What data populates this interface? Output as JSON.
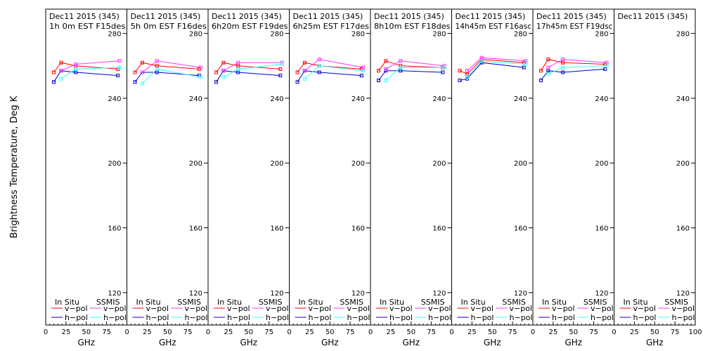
{
  "ylabel": "Brightness Temperature, Deg K",
  "xlabel": "GHz",
  "legend": {
    "insitu_title": "In Situ",
    "ssmis_title": "SSMIS",
    "v_label": "v−pol",
    "h_label": "h−pol"
  },
  "colors": {
    "insitu_v": "#ff0000",
    "insitu_h": "#0000cc",
    "ssmis_v": "#ff33ff",
    "ssmis_h": "#33ffff"
  },
  "chart_data": [
    {
      "type": "line",
      "title_line1": "Dec11  2015  (345)",
      "title_line2": "1h  0m  EST  F15des",
      "xlim": [
        0,
        100
      ],
      "ylim": [
        100,
        295
      ],
      "yticks": [
        120,
        160,
        200,
        240,
        280
      ],
      "xticks": [
        0,
        25,
        50,
        75,
        100
      ],
      "series": [
        {
          "name": "v-pol",
          "group": "In Situ",
          "x": [
            10,
            19,
            37,
            89
          ],
          "values": [
            256,
            262,
            260,
            258
          ]
        },
        {
          "name": "h-pol",
          "group": "In Situ",
          "x": [
            10,
            19,
            37,
            89
          ],
          "values": [
            250,
            257,
            256,
            254
          ]
        },
        {
          "name": "v-pol",
          "group": "SSMIS",
          "x": [
            19,
            37,
            91
          ],
          "values": [
            257,
            261,
            263
          ]
        },
        {
          "name": "h-pol",
          "group": "SSMIS",
          "x": [
            19,
            37,
            91
          ],
          "values": [
            252,
            258,
            259
          ]
        }
      ]
    },
    {
      "type": "line",
      "title_line1": "Dec11  2015  (345)",
      "title_line2": "5h  0m  EST  F16des",
      "xlim": [
        0,
        100
      ],
      "ylim": [
        100,
        295
      ],
      "yticks": [
        120,
        160,
        200,
        240,
        280
      ],
      "xticks": [
        0,
        25,
        50,
        75,
        100
      ],
      "series": [
        {
          "name": "v-pol",
          "group": "In Situ",
          "x": [
            10,
            19,
            37,
            89
          ],
          "values": [
            256,
            262,
            260,
            258
          ]
        },
        {
          "name": "h-pol",
          "group": "In Situ",
          "x": [
            10,
            19,
            37,
            89
          ],
          "values": [
            250,
            256,
            256,
            254
          ]
        },
        {
          "name": "v-pol",
          "group": "SSMIS",
          "x": [
            19,
            37,
            91
          ],
          "values": [
            256,
            263,
            259
          ]
        },
        {
          "name": "h-pol",
          "group": "SSMIS",
          "x": [
            19,
            37,
            91
          ],
          "values": [
            249,
            258,
            253
          ]
        }
      ]
    },
    {
      "type": "line",
      "title_line1": "Dec11  2015  (345)",
      "title_line2": "6h20m  EST  F19des",
      "xlim": [
        0,
        100
      ],
      "ylim": [
        100,
        295
      ],
      "yticks": [
        120,
        160,
        200,
        240,
        280
      ],
      "xticks": [
        0,
        25,
        50,
        75,
        100
      ],
      "series": [
        {
          "name": "v-pol",
          "group": "In Situ",
          "x": [
            10,
            19,
            37,
            89
          ],
          "values": [
            256,
            262,
            260,
            258
          ]
        },
        {
          "name": "h-pol",
          "group": "In Situ",
          "x": [
            10,
            19,
            37,
            89
          ],
          "values": [
            250,
            257,
            256,
            254
          ]
        },
        {
          "name": "v-pol",
          "group": "SSMIS",
          "x": [
            19,
            37,
            91
          ],
          "values": [
            257,
            262,
            262
          ]
        },
        {
          "name": "h-pol",
          "group": "SSMIS",
          "x": [
            19,
            37,
            91
          ],
          "values": [
            253,
            258,
            261
          ]
        }
      ]
    },
    {
      "type": "line",
      "title_line1": "Dec11  2015  (345)",
      "title_line2": "6h25m  EST  F17des",
      "xlim": [
        0,
        100
      ],
      "ylim": [
        100,
        295
      ],
      "yticks": [
        120,
        160,
        200,
        240,
        280
      ],
      "xticks": [
        0,
        25,
        50,
        75,
        100
      ],
      "series": [
        {
          "name": "v-pol",
          "group": "In Situ",
          "x": [
            10,
            19,
            37,
            89
          ],
          "values": [
            256,
            262,
            260,
            258
          ]
        },
        {
          "name": "h-pol",
          "group": "In Situ",
          "x": [
            10,
            19,
            37,
            89
          ],
          "values": [
            250,
            257,
            256,
            254
          ]
        },
        {
          "name": "v-pol",
          "group": "SSMIS",
          "x": [
            19,
            37,
            91
          ],
          "values": [
            257,
            264,
            259
          ]
        },
        {
          "name": "h-pol",
          "group": "SSMIS",
          "x": [
            19,
            37,
            91
          ],
          "values": [
            252,
            260,
            257
          ]
        }
      ]
    },
    {
      "type": "line",
      "title_line1": "Dec11  2015  (345)",
      "title_line2": "8h10m  EST  F18des",
      "xlim": [
        0,
        100
      ],
      "ylim": [
        100,
        295
      ],
      "yticks": [
        120,
        160,
        200,
        240,
        280
      ],
      "xticks": [
        0,
        25,
        50,
        75,
        100
      ],
      "series": [
        {
          "name": "v-pol",
          "group": "In Situ",
          "x": [
            10,
            19,
            37,
            89
          ],
          "values": [
            257,
            263,
            260,
            259
          ]
        },
        {
          "name": "h-pol",
          "group": "In Situ",
          "x": [
            10,
            19,
            37,
            89
          ],
          "values": [
            251,
            257,
            257,
            256
          ]
        },
        {
          "name": "v-pol",
          "group": "SSMIS",
          "x": [
            19,
            37,
            91
          ],
          "values": [
            258,
            263,
            260
          ]
        },
        {
          "name": "h-pol",
          "group": "SSMIS",
          "x": [
            19,
            37,
            91
          ],
          "values": [
            251,
            259,
            259
          ]
        }
      ]
    },
    {
      "type": "line",
      "title_line1": "Dec11  2015  (345)",
      "title_line2": "14h45m  EST  F16asc",
      "xlim": [
        0,
        100
      ],
      "ylim": [
        100,
        295
      ],
      "yticks": [
        120,
        160,
        200,
        240,
        280
      ],
      "xticks": [
        0,
        25,
        50,
        75,
        100
      ],
      "series": [
        {
          "name": "v-pol",
          "group": "In Situ",
          "x": [
            10,
            19,
            37,
            89
          ],
          "values": [
            257,
            255,
            264,
            262
          ]
        },
        {
          "name": "h-pol",
          "group": "In Situ",
          "x": [
            10,
            19,
            37,
            89
          ],
          "values": [
            251,
            252,
            262,
            259
          ]
        },
        {
          "name": "v-pol",
          "group": "SSMIS",
          "x": [
            19,
            37,
            91
          ],
          "values": [
            257,
            265,
            263
          ]
        },
        {
          "name": "h-pol",
          "group": "SSMIS",
          "x": [
            19,
            37,
            91
          ],
          "values": [
            253,
            263,
            261
          ]
        }
      ]
    },
    {
      "type": "line",
      "title_line1": "Dec11  2015  (345)",
      "title_line2": "17h45m  EST  F19dsc",
      "xlim": [
        0,
        100
      ],
      "ylim": [
        100,
        295
      ],
      "yticks": [
        120,
        160,
        200,
        240,
        280
      ],
      "xticks": [
        0,
        25,
        50,
        75,
        100
      ],
      "series": [
        {
          "name": "v-pol",
          "group": "In Situ",
          "x": [
            10,
            19,
            37,
            89
          ],
          "values": [
            257,
            264,
            262,
            261
          ]
        },
        {
          "name": "h-pol",
          "group": "In Situ",
          "x": [
            10,
            19,
            37,
            89
          ],
          "values": [
            251,
            257,
            256,
            258
          ]
        },
        {
          "name": "v-pol",
          "group": "SSMIS",
          "x": [
            19,
            37,
            91
          ],
          "values": [
            259,
            264,
            262
          ]
        },
        {
          "name": "h-pol",
          "group": "SSMIS",
          "x": [
            19,
            37,
            91
          ],
          "values": [
            255,
            259,
            260
          ]
        }
      ]
    },
    {
      "type": "line",
      "title_line1": "Dec11  2015  (345)",
      "title_line2": "",
      "xlim": [
        0,
        100
      ],
      "ylim": [
        100,
        295
      ],
      "yticks": [
        120,
        160,
        200,
        240,
        280
      ],
      "xticks": [
        0,
        25,
        50,
        75,
        100
      ],
      "series": []
    }
  ]
}
